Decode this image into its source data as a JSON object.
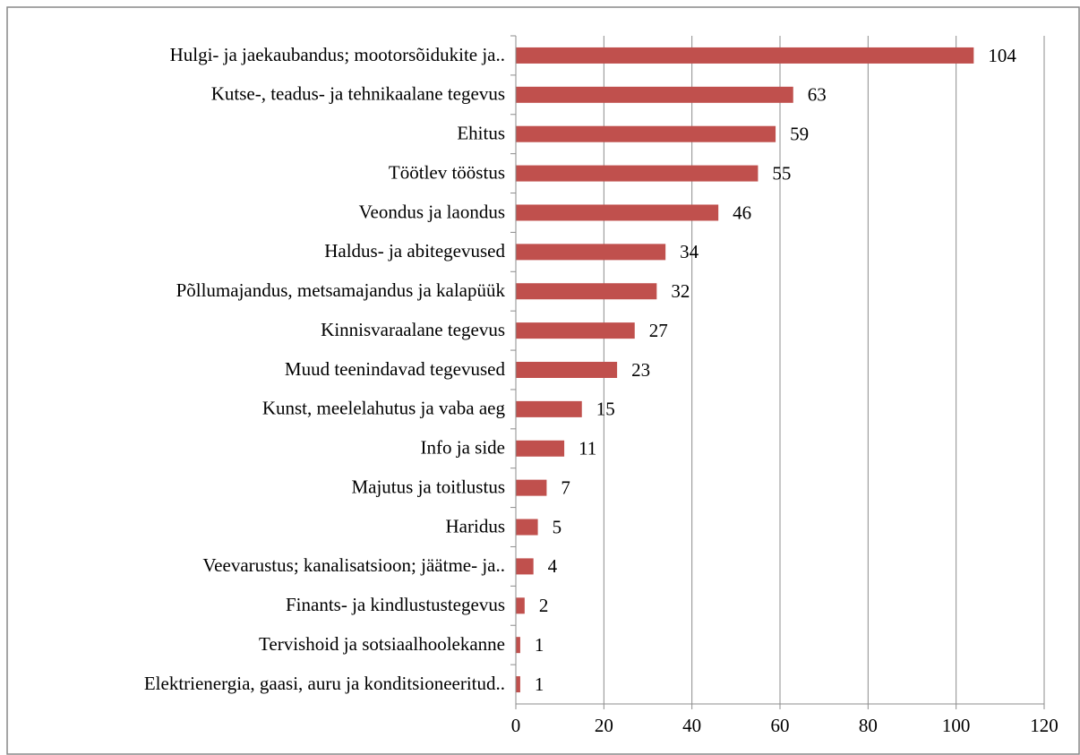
{
  "chart_data": {
    "type": "bar",
    "orientation": "horizontal",
    "categories": [
      "Hulgi- ja jaekaubandus; mootorsõidukite ja..",
      "Kutse-, teadus- ja tehnikaalane tegevus",
      "Ehitus",
      "Töötlev tööstus",
      "Veondus ja laondus",
      "Haldus- ja abitegevused",
      "Põllumajandus, metsamajandus ja kalapüük",
      "Kinnisvaraalane tegevus",
      "Muud teenindavad tegevused",
      "Kunst, meelelahutus ja vaba aeg",
      "Info ja side",
      "Majutus ja toitlustus",
      "Haridus",
      "Veevarustus; kanalisatsioon; jäätme- ja..",
      "Finants- ja kindlustustegevus",
      "Tervishoid ja sotsiaalhoolekanne",
      "Elektrienergia, gaasi, auru ja konditsioneeritud.."
    ],
    "values": [
      104,
      63,
      59,
      55,
      46,
      34,
      32,
      27,
      23,
      15,
      11,
      7,
      5,
      4,
      2,
      1,
      1
    ],
    "color": "#c0504d",
    "xlim": [
      0,
      120
    ],
    "xticks": [
      0,
      20,
      40,
      60,
      80,
      100,
      120
    ],
    "grid": true
  }
}
